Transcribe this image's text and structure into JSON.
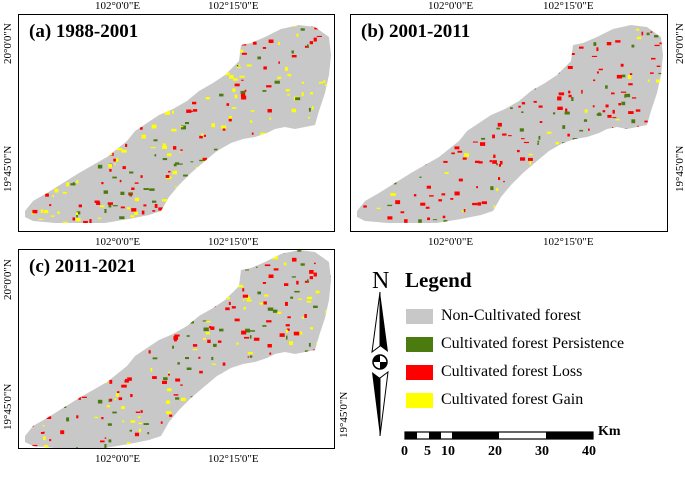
{
  "panels": [
    {
      "title": "(a) 1988-2001",
      "top_ticks": [
        "102°0'0\"E",
        "102°15'0\"E"
      ],
      "side_ticks": [
        "20°0'0\"N",
        "19°45'0\"N"
      ]
    },
    {
      "title": "(b) 2001-2011",
      "top_ticks": [
        "102°0'0\"E",
        "102°15'0\"E"
      ],
      "bottom_ticks": [
        "102°0'0\"E",
        "102°15'0\"E"
      ],
      "side_ticks": [
        "20°0'0\"N",
        "19°45'0\"N"
      ]
    },
    {
      "title": "(c) 2011-2021",
      "top_ticks": [
        "102°0'0\"E",
        "102°15'0\"E"
      ],
      "bottom_ticks": [
        "102°0'0\"E",
        "102°15'0\"E"
      ],
      "side_ticks": [
        "20°0'0\"N",
        "19°45'0\"N"
      ]
    }
  ],
  "north_label": "N",
  "legend": {
    "title": "Legend",
    "items": [
      {
        "label": "Non-Cultivated forest",
        "color": "#c8c8c8"
      },
      {
        "label": "Cultivated forest Persistence",
        "color": "#4b7a0f"
      },
      {
        "label": "Cultivated forest Loss",
        "color": "#ff0000"
      },
      {
        "label": "Cultivated forest Gain",
        "color": "#ffff00"
      }
    ]
  },
  "scale_bar": {
    "ticks": [
      "0",
      "5",
      "10",
      "20",
      "30",
      "40"
    ],
    "unit": "Km"
  }
}
